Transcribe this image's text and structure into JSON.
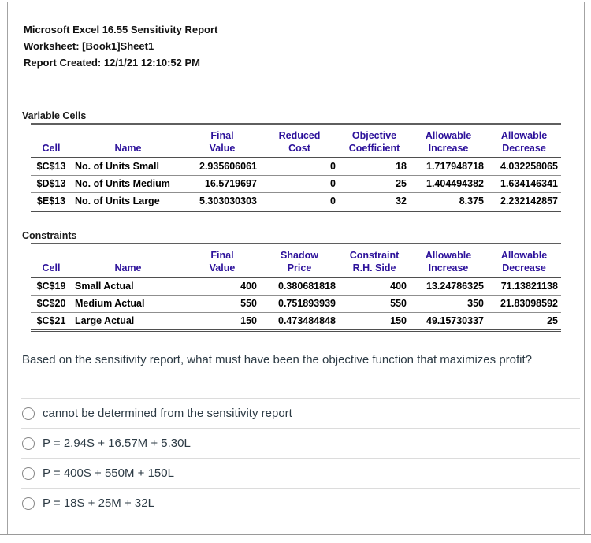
{
  "report_header": {
    "line1": "Microsoft Excel 16.55 Sensitivity Report",
    "line2": "Worksheet: [Book1]Sheet1",
    "line3": "Report Created: 12/1/21 12:10:52 PM"
  },
  "variable_cells": {
    "title": "Variable Cells",
    "header_row1": [
      "",
      "",
      "Final",
      "Reduced",
      "Objective",
      "Allowable",
      "Allowable"
    ],
    "header_row2": [
      "Cell",
      "Name",
      "Value",
      "Cost",
      "Coefficient",
      "Increase",
      "Decrease"
    ],
    "rows": [
      [
        "$C$13",
        "No. of Units Small",
        "2.935606061",
        "0",
        "18",
        "1.717948718",
        "4.032258065"
      ],
      [
        "$D$13",
        "No. of Units Medium",
        "16.5719697",
        "0",
        "25",
        "1.404494382",
        "1.634146341"
      ],
      [
        "$E$13",
        "No. of Units Large",
        "5.303030303",
        "0",
        "32",
        "8.375",
        "2.232142857"
      ]
    ]
  },
  "constraints": {
    "title": "Constraints",
    "header_row1": [
      "",
      "",
      "Final",
      "Shadow",
      "Constraint",
      "Allowable",
      "Allowable"
    ],
    "header_row2": [
      "Cell",
      "Name",
      "Value",
      "Price",
      "R.H. Side",
      "Increase",
      "Decrease"
    ],
    "rows": [
      [
        "$C$19",
        "Small Actual",
        "400",
        "0.380681818",
        "400",
        "13.24786325",
        "71.13821138"
      ],
      [
        "$C$20",
        "Medium Actual",
        "550",
        "0.751893939",
        "550",
        "350",
        "21.83098592"
      ],
      [
        "$C$21",
        "Large Actual",
        "150",
        "0.473484848",
        "150",
        "49.15730337",
        "25"
      ]
    ]
  },
  "question": {
    "text": "Based on the sensitivity report, what must have been the objective function that maximizes profit?",
    "options": [
      "cannot be determined from the sensitivity report",
      "P = 2.94S + 16.57M + 5.30L",
      "P = 400S + 550M + 150L",
      "P = 18S + 25M + 32L"
    ]
  },
  "colors": {
    "excel_header_text": "#2d129b",
    "table_text": "#000000",
    "question_text": "#2d3b45",
    "table_rule_dark": "#4f4f4f",
    "table_rule_light": "#8f8f8f",
    "panel_border": "#a3a3a3",
    "option_divider": "#dcdcdc"
  }
}
